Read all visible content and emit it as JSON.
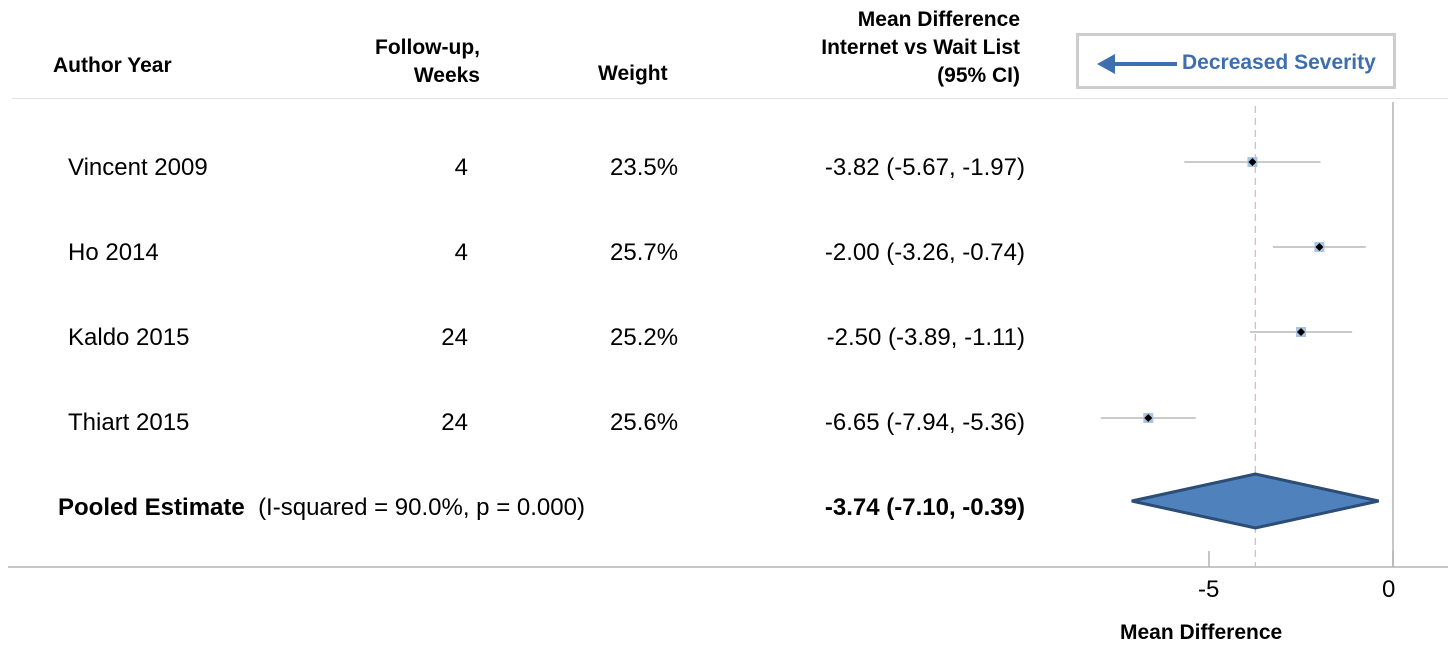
{
  "header": {
    "author_year": "Author Year",
    "follow_up_line1": "Follow-up,",
    "follow_up_line2": "Weeks",
    "weight": "Weight",
    "md_line1": "Mean Difference",
    "md_line2": "Internet vs Wait List",
    "md_line3": "(95% CI)"
  },
  "legend": {
    "label": "Decreased Severity",
    "color": "#3d6fae"
  },
  "chart_data": {
    "type": "forest",
    "xlabel": "Mean Difference",
    "xticks": [
      -5,
      0
    ],
    "xtick_labels": [
      "-5",
      "0"
    ],
    "xlim": [
      -9.1,
      0.1
    ],
    "studies": [
      {
        "author_year": "Vincent 2009",
        "follow_up": "4",
        "weight": "23.5%",
        "ci_text": "-3.82 (-5.67, -1.97)",
        "est": -3.82,
        "lo": -5.67,
        "hi": -1.97
      },
      {
        "author_year": "Ho 2014",
        "follow_up": "4",
        "weight": "25.7%",
        "ci_text": "-2.00 (-3.26, -0.74)",
        "est": -2.0,
        "lo": -3.26,
        "hi": -0.74
      },
      {
        "author_year": "Kaldo 2015",
        "follow_up": "24",
        "weight": "25.2%",
        "ci_text": "-2.50 (-3.89, -1.11)",
        "est": -2.5,
        "lo": -3.89,
        "hi": -1.11
      },
      {
        "author_year": "Thiart 2015",
        "follow_up": "24",
        "weight": "25.6%",
        "ci_text": "-6.65 (-7.94, -5.36)",
        "est": -6.65,
        "lo": -7.94,
        "hi": -5.36
      }
    ],
    "pooled": {
      "label": "Pooled Estimate",
      "stats": "(I-squared = 90.0%, p = 0.000)",
      "ci_text": "-3.74 (-7.10, -0.39)",
      "est": -3.74,
      "lo": -7.1,
      "hi": -0.39
    },
    "colors": {
      "marker_fill": "#a7c4e2",
      "diamond_fill": "#4f81bd",
      "diamond_stroke": "#2c4d75",
      "ref_line": "#e8b4c0",
      "ci_line": "#aaaaaa"
    }
  }
}
